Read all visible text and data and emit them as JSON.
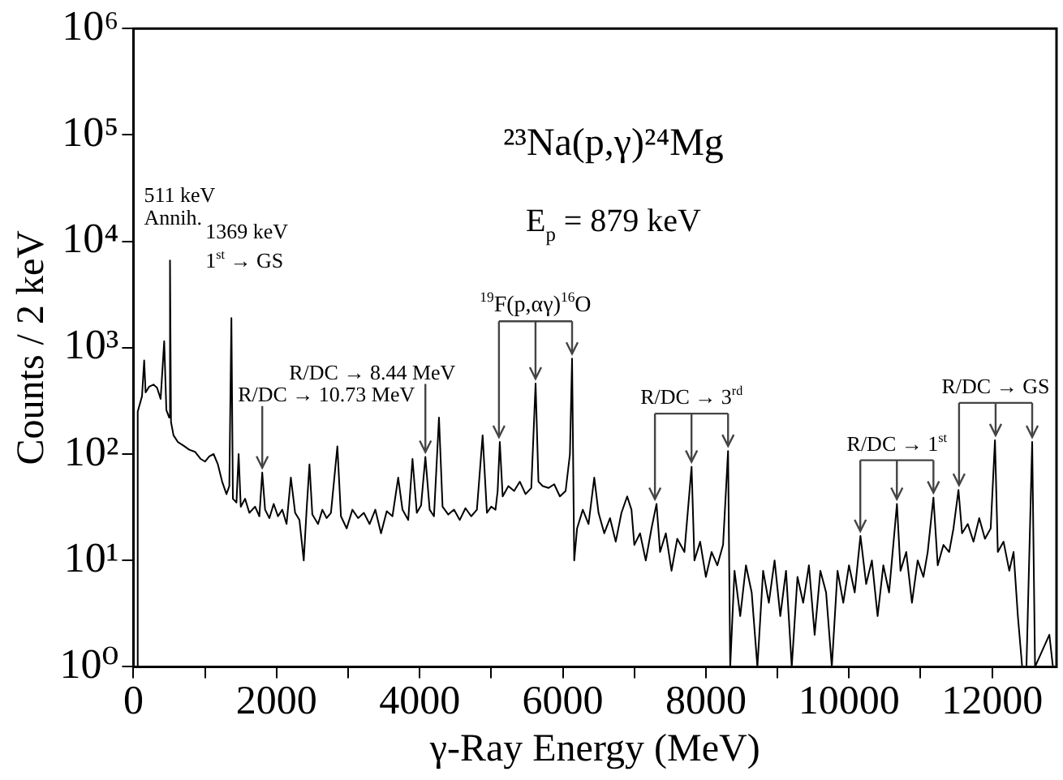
{
  "chart_data": {
    "type": "line",
    "title": "²³Na(p,γ)²⁴Mg",
    "subtitle": "E$_{p}$ = 879 keV",
    "xlabel": "γ-Ray Energy (MeV)",
    "ylabel": "Counts / 2 keV",
    "log": "y",
    "xlim": [
      0,
      12900
    ],
    "xticks": [
      0,
      {
        "value": 1000,
        "label": null
      },
      2000,
      {
        "value": 3000,
        "label": null
      },
      4000,
      {
        "value": 5000,
        "label": null
      },
      6000,
      {
        "value": 7000,
        "label": null
      },
      8000,
      {
        "value": 9000,
        "label": null
      },
      10000,
      {
        "value": 11000,
        "label": null
      },
      12000
    ],
    "ylim": [
      1,
      1000000
    ],
    "yticks": [
      {
        "value": 1,
        "label": "10⁰"
      },
      {
        "value": 10,
        "label": "10¹"
      },
      {
        "value": 100,
        "label": "10²"
      },
      {
        "value": 1000,
        "label": "10³"
      },
      {
        "value": 10000,
        "label": "10⁴"
      },
      {
        "value": 100000,
        "label": "10⁵"
      },
      {
        "value": 1000000,
        "label": "10⁶"
      }
    ],
    "series": [
      {
        "color": "#000000",
        "x": [
          50,
          60,
          80,
          120,
          150,
          170,
          220,
          280,
          330,
          380,
          430,
          460,
          500,
          511,
          525,
          560,
          620,
          700,
          780,
          860,
          940,
          1000,
          1060,
          1120,
          1180,
          1240,
          1300,
          1340,
          1369,
          1390,
          1440,
          1470,
          1500,
          1560,
          1620,
          1700,
          1760,
          1800,
          1840,
          1900,
          1960,
          2020,
          2080,
          2140,
          2200,
          2260,
          2320,
          2380,
          2420,
          2460,
          2500,
          2580,
          2640,
          2700,
          2760,
          2850,
          2900,
          2980,
          3060,
          3140,
          3220,
          3300,
          3380,
          3460,
          3540,
          3620,
          3700,
          3760,
          3840,
          3900,
          3960,
          4020,
          4080,
          4140,
          4200,
          4270,
          4320,
          4400,
          4480,
          4560,
          4640,
          4720,
          4800,
          4880,
          4940,
          5000,
          5060,
          5090,
          5120,
          5160,
          5240,
          5320,
          5400,
          5480,
          5560,
          5620,
          5660,
          5720,
          5800,
          5880,
          5960,
          6040,
          6100,
          6130,
          6160,
          6200,
          6280,
          6360,
          6440,
          6500,
          6580,
          6660,
          6740,
          6820,
          6900,
          6960,
          7000,
          7080,
          7160,
          7240,
          7310,
          7360,
          7440,
          7520,
          7600,
          7700,
          7800,
          7840,
          7920,
          8000,
          8080,
          8160,
          8240,
          8310,
          8340,
          8400,
          8480,
          8560,
          8640,
          8720,
          8800,
          8880,
          8960,
          9040,
          9120,
          9200,
          9280,
          9360,
          9440,
          9520,
          9600,
          9680,
          9760,
          9840,
          9920,
          10000,
          10080,
          10160,
          10240,
          10320,
          10400,
          10480,
          10560,
          10670,
          10720,
          10800,
          10880,
          10960,
          11040,
          11100,
          11180,
          11240,
          11320,
          11400,
          11460,
          11530,
          11580,
          11660,
          11740,
          11820,
          11900,
          11980,
          12040,
          12080,
          12160,
          12240,
          12300,
          12360,
          12420,
          12480,
          12560,
          12600,
          12800,
          12850
        ],
        "values": [
          1,
          250,
          280,
          350,
          760,
          380,
          430,
          450,
          420,
          330,
          1150,
          260,
          220,
          6600,
          200,
          150,
          130,
          120,
          110,
          105,
          90,
          85,
          95,
          100,
          80,
          55,
          42,
          50,
          1900,
          38,
          35,
          100,
          32,
          38,
          28,
          32,
          26,
          67,
          30,
          25,
          34,
          26,
          30,
          22,
          60,
          28,
          24,
          10,
          30,
          80,
          27,
          22,
          30,
          25,
          28,
          118,
          26,
          20,
          30,
          25,
          28,
          22,
          30,
          18,
          29,
          26,
          60,
          30,
          24,
          90,
          28,
          33,
          94,
          30,
          26,
          220,
          32,
          27,
          30,
          24,
          31,
          26,
          30,
          150,
          28,
          32,
          30,
          45,
          130,
          40,
          50,
          45,
          55,
          42,
          48,
          460,
          55,
          50,
          48,
          52,
          40,
          45,
          100,
          790,
          10,
          20,
          30,
          22,
          60,
          28,
          18,
          25,
          15,
          28,
          40,
          30,
          14,
          18,
          10,
          20,
          34,
          12,
          18,
          8,
          16,
          12,
          76,
          10,
          15,
          7,
          12,
          9,
          14,
          107,
          1,
          8,
          3,
          9,
          5,
          1,
          8,
          4,
          10,
          3,
          8,
          1,
          7,
          4,
          9,
          2,
          8,
          5,
          1,
          8,
          4,
          9,
          5,
          17,
          6,
          10,
          3,
          9,
          5,
          34,
          8,
          12,
          4,
          10,
          7,
          12,
          39,
          9,
          14,
          12,
          20,
          46,
          18,
          22,
          15,
          25,
          16,
          20,
          135,
          12,
          15,
          8,
          12,
          3,
          1,
          1,
          130,
          1,
          2,
          1
        ]
      }
    ],
    "annotations": [
      {
        "text": "511 keV\nAnnih.",
        "x": 511,
        "y": 6600
      },
      {
        "text": "1369 keV\n1$^{st}$ → GS",
        "x": 1369,
        "y": 1900
      },
      {
        "text": "R/DC → 10.73 MeV",
        "x": 1800,
        "y": 67
      },
      {
        "text": "R/DC → 8.44 MeV",
        "x": 4080,
        "y": 94
      },
      {
        "text": "$^{19}$F(p,αγ)$^{16}$O",
        "x": 6130,
        "y": 790
      },
      {
        "text": "R/DC → 3$^{rd}$",
        "x": 8310,
        "y": 107
      },
      {
        "text": "R/DC → 1$^{st}$",
        "x": 11180,
        "y": 39
      },
      {
        "text": "R/DC → GS",
        "x": 12560,
        "y": 130
      }
    ]
  }
}
